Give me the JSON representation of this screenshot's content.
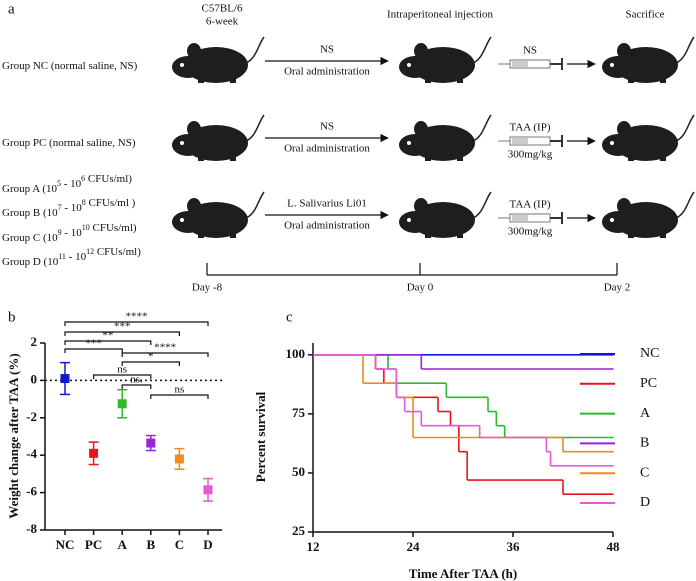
{
  "panel_a": {
    "label": "a",
    "strain": "C57BL/6",
    "age": "6-week",
    "injection": "Intraperitoneal injection",
    "sacrifice": "Sacrifice",
    "rows": [
      {
        "groups": [
          {
            "text": [
              "Group NC (normal saline, NS)"
            ],
            "sup": []
          }
        ],
        "treatment": "NS",
        "route": "Oral administration",
        "injection": "NS"
      },
      {
        "groups": [
          {
            "text": [
              "Group PC (normal saline, NS)"
            ],
            "sup": []
          }
        ],
        "treatment": "NS",
        "route": "Oral administration",
        "injection": "TAA (IP)",
        "dose": "300mg/kg"
      },
      {
        "groups": [
          {
            "text": [
              "Group A (10",
              " - 10",
              " CFUs/ml)"
            ],
            "sup": [
              "5",
              "6"
            ]
          },
          {
            "text": [
              "Group B (10",
              " - 10",
              " CFUs/ml )"
            ],
            "sup": [
              "7",
              "8"
            ]
          },
          {
            "text": [
              "Group C (10",
              " - 10",
              " CFUs/ml)"
            ],
            "sup": [
              "9",
              "10"
            ]
          },
          {
            "text": [
              "Group D (10",
              " - 10",
              " CFUs/ml)"
            ],
            "sup": [
              "11",
              "12"
            ]
          }
        ],
        "treatment": "L. Salivarius Li01",
        "route": "Oral administration",
        "injection": "TAA (IP)",
        "dose": "300mg/kg"
      }
    ],
    "timeline": [
      "Day -8",
      "Day 0",
      "Day 2"
    ]
  },
  "chart_data": [
    {
      "panel": "b",
      "type": "errorbar",
      "ylabel": "Weight change after TAA (%)",
      "categories": [
        "NC",
        "PC",
        "A",
        "B",
        "C",
        "D"
      ],
      "values": [
        0.1,
        -3.9,
        -1.25,
        -3.35,
        -4.2,
        -5.85
      ],
      "errors": [
        0.85,
        0.6,
        0.75,
        0.4,
        0.55,
        0.6
      ],
      "colors": [
        "#1515d8",
        "#e8141c",
        "#2fb92f",
        "#9b22d6",
        "#f08a1c",
        "#e65ad8"
      ],
      "ylim": [
        -8,
        2
      ],
      "yticks": [
        -8,
        -6,
        -4,
        -2,
        0,
        2
      ],
      "reference_line": 0,
      "annotations": [
        "****",
        "***",
        "**",
        "***",
        "****",
        "*",
        "ns",
        "ns.",
        "ns"
      ]
    },
    {
      "panel": "c",
      "type": "step",
      "xlabel": "Time After TAA (h)",
      "ylabel": "Percent survival",
      "xlim": [
        12,
        48
      ],
      "xticks": [
        12,
        24,
        36,
        48
      ],
      "ylim": [
        25,
        105
      ],
      "yticks": [
        25,
        50,
        75,
        100
      ],
      "series": [
        {
          "name": "NC",
          "color": "#1515d8",
          "x": [
            12,
            48
          ],
          "values": [
            100,
            100
          ]
        },
        {
          "name": "PC",
          "color": "#e8141c",
          "x": [
            12,
            19.5,
            20.5,
            22,
            27,
            28.5,
            29.5,
            30.5,
            42,
            48
          ],
          "values": [
            100,
            94,
            88,
            82,
            76,
            70,
            59,
            47,
            41,
            41
          ]
        },
        {
          "name": "A",
          "color": "#2fb92f",
          "x": [
            12,
            21,
            22,
            28,
            33,
            34,
            35,
            48
          ],
          "values": [
            100,
            94,
            88,
            82,
            76,
            70,
            65,
            65
          ]
        },
        {
          "name": "B",
          "color": "#9b22d6",
          "x": [
            12,
            25,
            48
          ],
          "values": [
            100,
            94,
            94
          ]
        },
        {
          "name": "C",
          "color": "#f08a1c",
          "x": [
            12,
            18,
            22,
            24,
            42,
            48
          ],
          "values": [
            100,
            88,
            82,
            65,
            59,
            59
          ]
        },
        {
          "name": "D",
          "color": "#e65ad8",
          "x": [
            12,
            19.5,
            22,
            23,
            25,
            32,
            40,
            40.5,
            48
          ],
          "values": [
            100,
            94,
            82,
            76,
            70,
            65,
            59,
            53,
            53
          ]
        }
      ]
    }
  ]
}
